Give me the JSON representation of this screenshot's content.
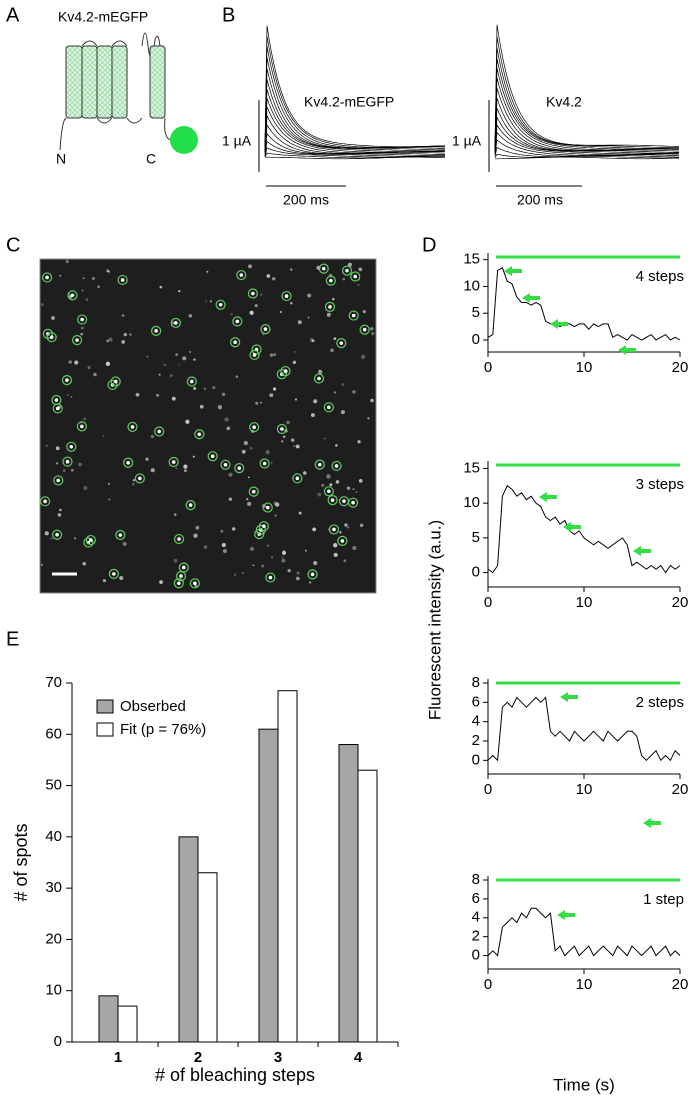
{
  "figure": {
    "panel_a": "A",
    "panel_b": "B",
    "panel_c": "C",
    "panel_d": "D",
    "panel_e": "E",
    "a_title": "Kv4.2-mEGFP",
    "a_n": "N",
    "a_c": "C",
    "b_label_1": "Kv4.2-mEGFP",
    "b_label_2": "Kv4.2",
    "b_scale_y_1": "1 µA",
    "b_scale_y_2": "1 µA",
    "b_scale_x_1": "200 ms",
    "b_scale_x_2": "200 ms",
    "d_ylabel": "Fluorescent intensity (a.u.)"
  },
  "chart_data": [
    {
      "type": "bar",
      "categories": [
        "1",
        "2",
        "3",
        "4"
      ],
      "xlabel": "# of bleaching steps",
      "ylabel": "# of spots",
      "series": [
        {
          "name": "Obserbed",
          "color": "#a6a6a6",
          "values": [
            9,
            40,
            61,
            58
          ]
        },
        {
          "name": "Fit (p = 76%)",
          "color": "#ffffff",
          "values": [
            7,
            33,
            68.5,
            53
          ]
        }
      ],
      "ylim": [
        0,
        70
      ],
      "yticks": [
        0,
        10,
        20,
        30,
        40,
        50,
        60,
        70
      ],
      "legend": "upper-left"
    },
    {
      "type": "line",
      "annotation": "4 steps",
      "color": "#000000",
      "xlim": [
        0,
        20
      ],
      "xticks": [
        0,
        10,
        20
      ],
      "ylim": [
        -1.5,
        15.5
      ],
      "yticks": [
        0,
        5,
        10,
        15
      ],
      "x": [
        0,
        0.5,
        1,
        1.5,
        2,
        2.5,
        3,
        3.5,
        4,
        4.5,
        5,
        5.5,
        6,
        6.5,
        7,
        7.5,
        8,
        8.5,
        9,
        9.5,
        10,
        10.5,
        11,
        11.5,
        12,
        12.5,
        13,
        13.5,
        14,
        14.5,
        15,
        15.5,
        16,
        16.5,
        17,
        17.5,
        18,
        18.5,
        19,
        19.5,
        20
      ],
      "values": [
        0.5,
        1,
        13,
        13.5,
        11,
        10.5,
        8,
        7,
        7,
        6.5,
        7,
        6.5,
        3.5,
        3,
        3,
        2.5,
        3,
        3,
        2.5,
        3,
        3,
        2,
        3,
        2.5,
        3,
        3,
        0.5,
        1,
        0.5,
        0,
        1,
        0.5,
        0,
        0.5,
        1,
        0,
        0.5,
        1,
        0,
        0.5,
        0
      ]
    },
    {
      "type": "line",
      "annotation": "3 steps",
      "color": "#000000",
      "xlim": [
        0,
        20
      ],
      "xticks": [
        0,
        10,
        20
      ],
      "ylim": [
        -1.5,
        15.5
      ],
      "yticks": [
        0,
        5,
        10,
        15
      ],
      "x": [
        0,
        0.5,
        1,
        1.5,
        2,
        2.5,
        3,
        3.5,
        4,
        4.5,
        5,
        5.5,
        6,
        6.5,
        7,
        7.5,
        8,
        8.5,
        9,
        9.5,
        10,
        10.5,
        11,
        11.5,
        12,
        12.5,
        13,
        13.5,
        14,
        14.5,
        15,
        15.5,
        16,
        16.5,
        17,
        17.5,
        18,
        18.5,
        19,
        19.5,
        20
      ],
      "values": [
        0.5,
        0,
        1,
        11,
        12.5,
        12,
        11,
        11.5,
        10.5,
        11,
        10,
        9.5,
        8,
        7.5,
        8,
        7,
        7.5,
        6,
        5.5,
        6,
        5,
        4.5,
        4,
        4.5,
        4,
        3.5,
        4,
        4.5,
        5,
        4,
        1,
        1.5,
        1,
        0.5,
        1,
        0.5,
        1,
        0,
        1,
        0.5,
        1
      ]
    },
    {
      "type": "line",
      "annotation": "2 steps",
      "color": "#000000",
      "xlim": [
        0,
        20
      ],
      "xticks": [
        0,
        10,
        20
      ],
      "ylim": [
        -1,
        8
      ],
      "yticks": [
        0,
        2,
        4,
        6,
        8
      ],
      "x": [
        0,
        0.5,
        1,
        1.5,
        2,
        2.5,
        3,
        3.5,
        4,
        4.5,
        5,
        5.5,
        6,
        6.5,
        7,
        7.5,
        8,
        8.5,
        9,
        9.5,
        10,
        10.5,
        11,
        11.5,
        12,
        12.5,
        13,
        13.5,
        14,
        14.5,
        15,
        15.5,
        16,
        16.5,
        17,
        17.5,
        18,
        18.5,
        19,
        19.5,
        20
      ],
      "values": [
        0,
        0.5,
        0,
        5.5,
        6,
        5.5,
        6.5,
        6,
        5.5,
        6,
        6.5,
        6,
        6.5,
        3,
        2.5,
        3,
        2.5,
        2,
        3,
        2.5,
        2,
        2.5,
        3,
        2.5,
        2,
        3,
        2.5,
        2,
        2.5,
        3,
        3,
        2.5,
        0.5,
        0,
        0.5,
        1,
        0,
        0.5,
        0,
        1,
        0.5
      ]
    },
    {
      "type": "line",
      "annotation": "1 step",
      "xlabel": "Time (s)",
      "color": "#000000",
      "xlim": [
        0,
        20
      ],
      "xticks": [
        0,
        10,
        20
      ],
      "ylim": [
        -1,
        8
      ],
      "yticks": [
        0,
        2,
        4,
        6,
        8
      ],
      "x": [
        0,
        0.5,
        1,
        1.5,
        2,
        2.5,
        3,
        3.5,
        4,
        4.5,
        5,
        5.5,
        6,
        6.5,
        7,
        7.5,
        8,
        8.5,
        9,
        9.5,
        10,
        10.5,
        11,
        11.5,
        12,
        12.5,
        13,
        13.5,
        14,
        14.5,
        15,
        15.5,
        16,
        16.5,
        17,
        17.5,
        18,
        18.5,
        19,
        19.5,
        20
      ],
      "values": [
        0,
        0.5,
        0,
        3,
        3.5,
        4,
        3.5,
        4.5,
        4,
        5,
        5,
        4.5,
        4,
        4.5,
        0.5,
        1,
        0,
        0.5,
        1,
        0,
        0.5,
        1,
        0,
        0.5,
        1,
        0.5,
        0,
        1,
        0.5,
        0,
        1,
        0.5,
        0,
        0.5,
        1,
        0,
        0.5,
        1,
        0,
        0.5,
        0
      ]
    }
  ]
}
